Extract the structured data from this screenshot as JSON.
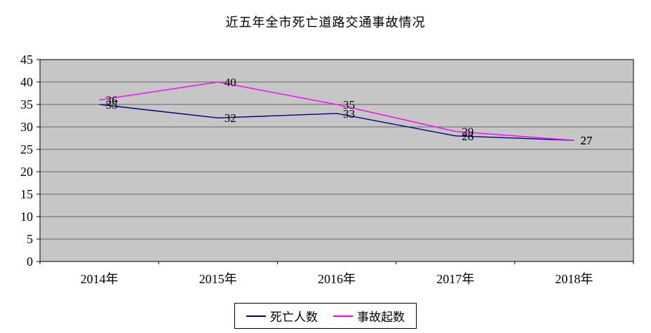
{
  "title": "近五年全市死亡道路交通事故情况",
  "chart_data": {
    "type": "line",
    "title": "近五年全市死亡道路交通事故情况",
    "categories": [
      "2014年",
      "2015年",
      "2016年",
      "2017年",
      "2018年"
    ],
    "series": [
      {
        "name": "死亡人数",
        "color": "#000080",
        "values": [
          35,
          32,
          33,
          28,
          27
        ]
      },
      {
        "name": "事故起数",
        "color": "#ff00ff",
        "values": [
          36,
          40,
          35,
          29,
          27
        ]
      }
    ],
    "xlabel": "",
    "ylabel": "",
    "ylim": [
      0,
      45
    ],
    "ytick_step": 5,
    "grid": true,
    "legend_position": "bottom",
    "plot_bg": "#c6c6c6",
    "data_labels": true
  },
  "colors": {
    "background": "#ffffff",
    "plot_background": "#c6c6c6",
    "axis": "#000000",
    "gridline": "#000000",
    "text": "#000000"
  }
}
